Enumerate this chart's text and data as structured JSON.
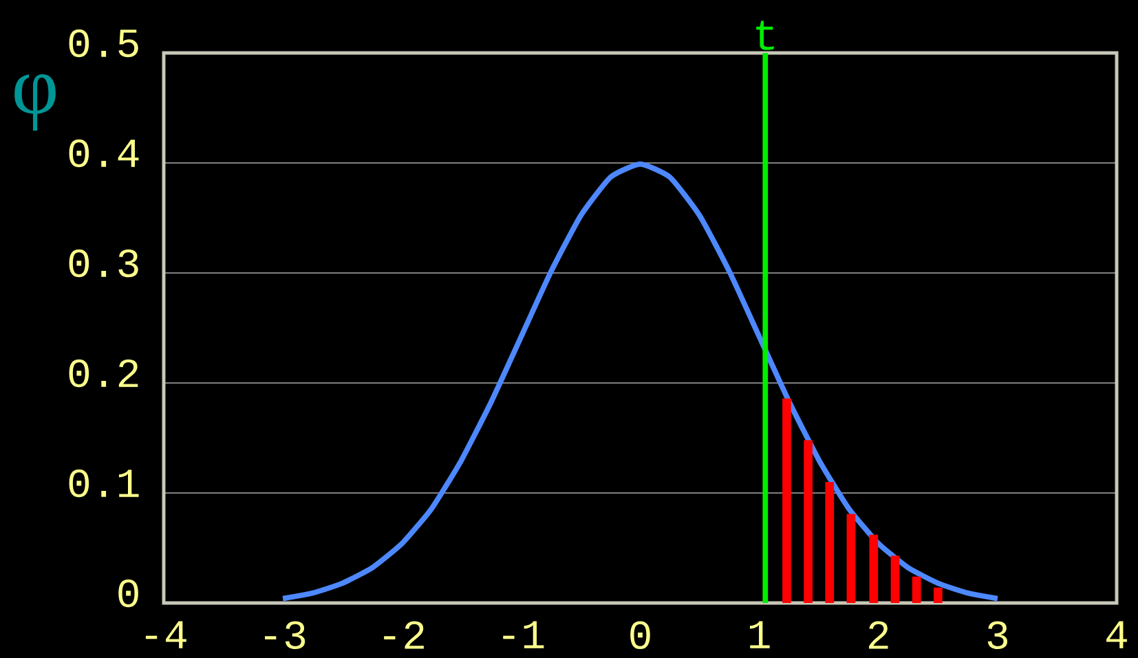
{
  "chart_data": {
    "type": "line",
    "ylabel": "φ",
    "xlim": [
      -4,
      4
    ],
    "ylim": [
      0,
      0.5
    ],
    "xticks": [
      -4,
      -3,
      -2,
      -1,
      0,
      1,
      2,
      3,
      4
    ],
    "yticks": [
      0,
      0.1,
      0.2,
      0.3,
      0.4,
      0.5
    ],
    "grid": "y",
    "series": [
      {
        "color": "#4d88ff",
        "x": [
          -3,
          -2.75,
          -2.5,
          -2.25,
          -2,
          -1.75,
          -1.5,
          -1.25,
          -1,
          -0.75,
          -0.5,
          -0.25,
          0,
          0.25,
          0.5,
          0.75,
          1,
          1.25,
          1.5,
          1.75,
          2,
          2.25,
          2.5,
          2.75,
          3
        ],
        "values": [
          0.004,
          0.009,
          0.018,
          0.032,
          0.054,
          0.086,
          0.13,
          0.183,
          0.242,
          0.301,
          0.352,
          0.387,
          0.399,
          0.387,
          0.352,
          0.301,
          0.242,
          0.183,
          0.13,
          0.086,
          0.054,
          0.032,
          0.018,
          0.009,
          0.004
        ]
      },
      {
        "type": "bar",
        "color": "#ff0000",
        "x": [
          1.23,
          1.41,
          1.59,
          1.77,
          1.96,
          2.14,
          2.32,
          2.5
        ],
        "values": [
          0.186,
          0.148,
          0.11,
          0.081,
          0.062,
          0.043,
          0.024,
          0.014
        ]
      }
    ],
    "ref_lines": [
      {
        "axis": "x",
        "value": 1.05,
        "label": "t",
        "color": "#00ee00"
      }
    ]
  }
}
